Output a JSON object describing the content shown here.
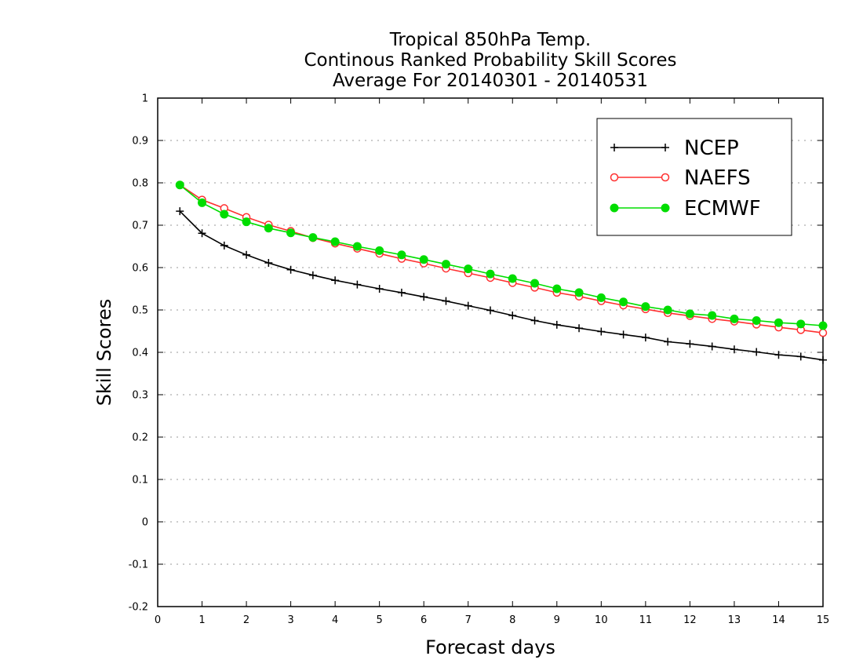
{
  "chart_data": {
    "type": "line",
    "title": [
      "Tropical 850hPa Temp.",
      "Continous Ranked Probability Skill Scores",
      "Average For 20140301 - 20140531"
    ],
    "xlabel": "Forecast days",
    "ylabel": "Skill Scores",
    "xlim": [
      0,
      15
    ],
    "ylim": [
      -0.2,
      1
    ],
    "xticks": [
      "0",
      "1",
      "2",
      "3",
      "4",
      "5",
      "6",
      "7",
      "8",
      "9",
      "10",
      "11",
      "12",
      "13",
      "14",
      "15"
    ],
    "yticks": [
      "-0.2",
      "-0.1",
      "0",
      "0.1",
      "0.2",
      "0.3",
      "0.4",
      "0.5",
      "0.6",
      "0.7",
      "0.8",
      "0.9",
      "1"
    ],
    "grid": "horizontal dotted",
    "legend_position": "top-right",
    "x": [
      0.5,
      1,
      1.5,
      2,
      2.5,
      3,
      3.5,
      4,
      4.5,
      5,
      5.5,
      6,
      6.5,
      7,
      7.5,
      8,
      8.5,
      9,
      9.5,
      10,
      10.5,
      11,
      11.5,
      12,
      12.5,
      13,
      13.5,
      14,
      14.5,
      15
    ],
    "series": [
      {
        "name": "NCEP",
        "color": "#000000",
        "marker": "plus",
        "values": [
          0.733,
          0.681,
          0.652,
          0.63,
          0.611,
          0.595,
          0.582,
          0.57,
          0.56,
          0.55,
          0.541,
          0.531,
          0.521,
          0.51,
          0.499,
          0.487,
          0.475,
          0.465,
          0.457,
          0.449,
          0.442,
          0.435,
          0.425,
          0.42,
          0.414,
          0.407,
          0.401,
          0.394,
          0.39,
          0.382
        ]
      },
      {
        "name": "NAEFS",
        "color": "#ff3030",
        "marker": "open-circle",
        "values": [
          0.795,
          0.76,
          0.74,
          0.719,
          0.701,
          0.686,
          0.67,
          0.657,
          0.645,
          0.633,
          0.621,
          0.61,
          0.598,
          0.587,
          0.576,
          0.564,
          0.553,
          0.541,
          0.532,
          0.521,
          0.511,
          0.502,
          0.493,
          0.486,
          0.479,
          0.473,
          0.466,
          0.459,
          0.453,
          0.446
        ]
      },
      {
        "name": "ECMWF",
        "color": "#00dd00",
        "marker": "filled-circle",
        "values": [
          0.795,
          0.753,
          0.726,
          0.708,
          0.693,
          0.682,
          0.671,
          0.661,
          0.65,
          0.64,
          0.63,
          0.619,
          0.608,
          0.597,
          0.585,
          0.574,
          0.563,
          0.55,
          0.541,
          0.529,
          0.519,
          0.508,
          0.5,
          0.491,
          0.487,
          0.479,
          0.475,
          0.47,
          0.467,
          0.463
        ]
      }
    ]
  }
}
